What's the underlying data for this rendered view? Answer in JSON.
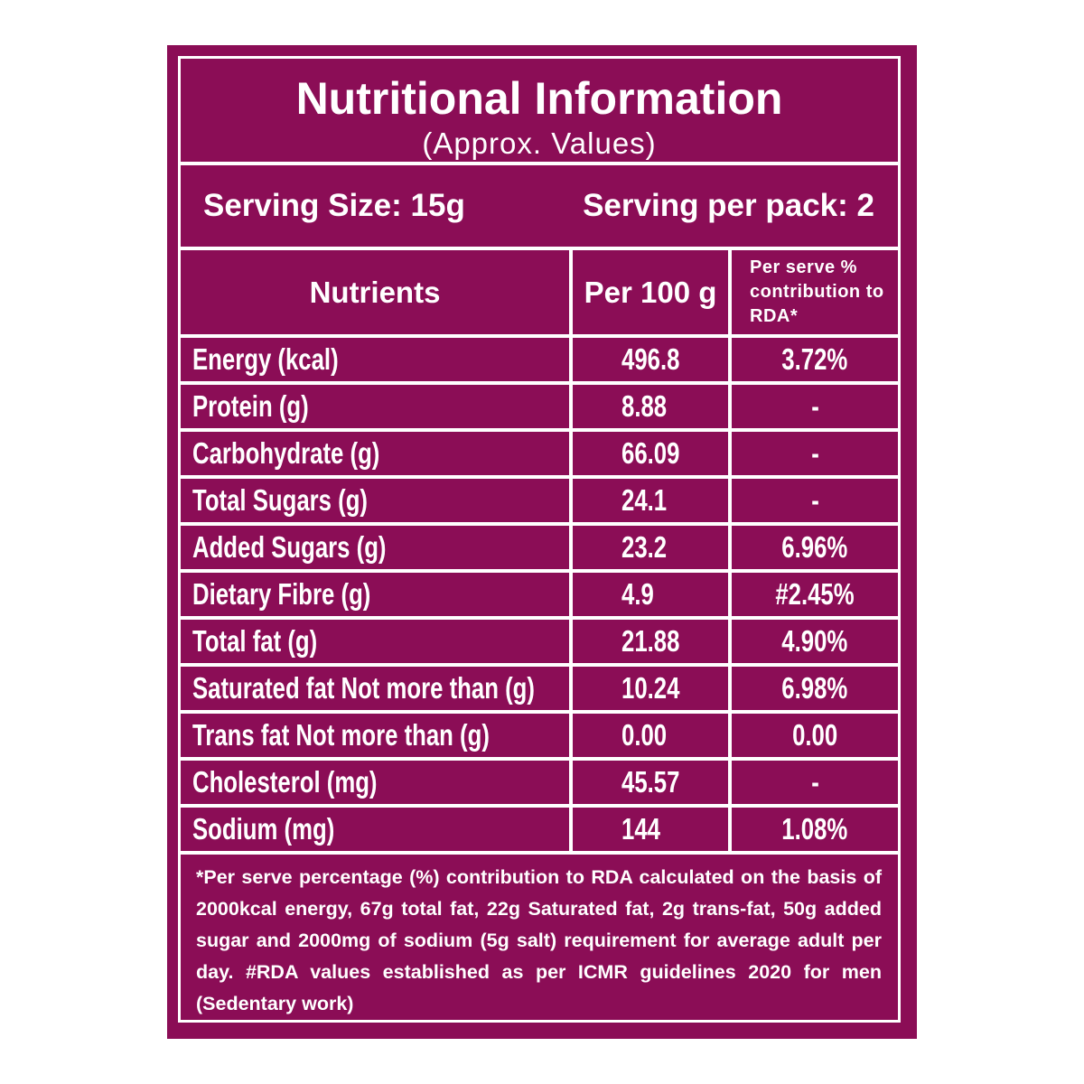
{
  "header": {
    "title": "Nutritional Information",
    "subtitle": "(Approx. Values)"
  },
  "serving": {
    "size": "Serving Size: 15g",
    "per_pack": "Serving per pack: 2"
  },
  "table": {
    "columns": [
      "Nutrients",
      "Per 100 g",
      "Per serve % contribution to RDA*"
    ],
    "rows": [
      [
        "Energy (kcal)",
        "496.8",
        "3.72%"
      ],
      [
        "Protein (g)",
        "8.88",
        "-"
      ],
      [
        "Carbohydrate (g)",
        "66.09",
        "-"
      ],
      [
        "Total Sugars (g)",
        "24.1",
        "-"
      ],
      [
        "Added Sugars (g)",
        "23.2",
        "6.96%"
      ],
      [
        "Dietary Fibre (g)",
        "4.9",
        "#2.45%"
      ],
      [
        "Total fat (g)",
        "21.88",
        "4.90%"
      ],
      [
        "Saturated fat Not more than (g)",
        "10.24",
        "6.98%"
      ],
      [
        "Trans fat Not more than (g)",
        "0.00",
        "0.00"
      ],
      [
        "Cholesterol (mg)",
        "45.57",
        "-"
      ],
      [
        "Sodium (mg)",
        "144",
        "1.08%"
      ]
    ]
  },
  "footnote": "*Per serve percentage (%) contribution to RDA calculated on the basis of 2000kcal energy, 67g total fat, 22g Saturated fat, 2g trans-fat, 50g added sugar and 2000mg of sodium (5g salt) requirement for average adult per day. #RDA values established as per ICMR guidelines 2020 for men (Sedentary work)"
}
